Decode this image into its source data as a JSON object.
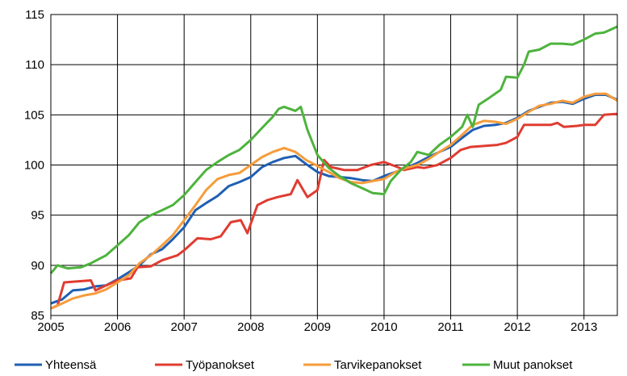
{
  "chart_data": {
    "type": "line",
    "title": "",
    "xlabel": "",
    "ylabel": "",
    "xlim": [
      2005,
      2013.5
    ],
    "ylim": [
      85,
      115
    ],
    "yticks": [
      85,
      90,
      95,
      100,
      105,
      110,
      115
    ],
    "xticks": [
      "2005",
      "2006",
      "2007",
      "2008",
      "2009",
      "2010",
      "2011",
      "2012",
      "2013"
    ],
    "grid": true,
    "legend_position": "bottom",
    "series": [
      {
        "name": "Yhteensä",
        "color": "#1f5fb3",
        "points": [
          [
            2005.0,
            86.2
          ],
          [
            2005.17,
            86.6
          ],
          [
            2005.33,
            87.5
          ],
          [
            2005.5,
            87.6
          ],
          [
            2005.67,
            87.9
          ],
          [
            2005.83,
            88.0
          ],
          [
            2006.0,
            88.6
          ],
          [
            2006.17,
            89.3
          ],
          [
            2006.33,
            90.0
          ],
          [
            2006.5,
            91.1
          ],
          [
            2006.67,
            91.6
          ],
          [
            2006.83,
            92.6
          ],
          [
            2007.0,
            93.8
          ],
          [
            2007.17,
            95.5
          ],
          [
            2007.33,
            96.2
          ],
          [
            2007.5,
            96.9
          ],
          [
            2007.67,
            97.9
          ],
          [
            2007.83,
            98.3
          ],
          [
            2008.0,
            98.8
          ],
          [
            2008.17,
            99.8
          ],
          [
            2008.33,
            100.3
          ],
          [
            2008.5,
            100.7
          ],
          [
            2008.67,
            100.9
          ],
          [
            2008.83,
            100.1
          ],
          [
            2009.0,
            99.3
          ],
          [
            2009.17,
            98.9
          ],
          [
            2009.33,
            98.8
          ],
          [
            2009.5,
            98.7
          ],
          [
            2009.67,
            98.5
          ],
          [
            2009.83,
            98.4
          ],
          [
            2010.0,
            98.9
          ],
          [
            2010.17,
            99.3
          ],
          [
            2010.33,
            99.7
          ],
          [
            2010.5,
            100.2
          ],
          [
            2010.67,
            100.8
          ],
          [
            2010.83,
            101.3
          ],
          [
            2011.0,
            101.8
          ],
          [
            2011.17,
            102.7
          ],
          [
            2011.33,
            103.5
          ],
          [
            2011.5,
            103.9
          ],
          [
            2011.67,
            104.0
          ],
          [
            2011.83,
            104.2
          ],
          [
            2012.0,
            104.7
          ],
          [
            2012.17,
            105.4
          ],
          [
            2012.33,
            105.8
          ],
          [
            2012.5,
            106.2
          ],
          [
            2012.67,
            106.3
          ],
          [
            2012.83,
            106.1
          ],
          [
            2013.0,
            106.6
          ],
          [
            2013.17,
            107.0
          ],
          [
            2013.33,
            107.0
          ],
          [
            2013.5,
            106.5
          ]
        ]
      },
      {
        "name": "Työpanokset",
        "color": "#e03c31",
        "points": [
          [
            2005.0,
            85.7
          ],
          [
            2005.1,
            86.0
          ],
          [
            2005.2,
            88.3
          ],
          [
            2005.4,
            88.4
          ],
          [
            2005.6,
            88.5
          ],
          [
            2005.67,
            87.5
          ],
          [
            2005.83,
            88.0
          ],
          [
            2006.0,
            88.5
          ],
          [
            2006.2,
            88.7
          ],
          [
            2006.3,
            89.8
          ],
          [
            2006.5,
            89.9
          ],
          [
            2006.67,
            90.5
          ],
          [
            2006.9,
            91.0
          ],
          [
            2007.0,
            91.5
          ],
          [
            2007.2,
            92.7
          ],
          [
            2007.4,
            92.6
          ],
          [
            2007.55,
            92.9
          ],
          [
            2007.7,
            94.3
          ],
          [
            2007.85,
            94.5
          ],
          [
            2007.95,
            93.2
          ],
          [
            2008.1,
            96.0
          ],
          [
            2008.25,
            96.5
          ],
          [
            2008.4,
            96.8
          ],
          [
            2008.6,
            97.1
          ],
          [
            2008.7,
            98.5
          ],
          [
            2008.85,
            96.8
          ],
          [
            2009.0,
            97.5
          ],
          [
            2009.1,
            100.5
          ],
          [
            2009.2,
            99.8
          ],
          [
            2009.4,
            99.5
          ],
          [
            2009.6,
            99.5
          ],
          [
            2009.8,
            100.0
          ],
          [
            2010.0,
            100.3
          ],
          [
            2010.2,
            99.8
          ],
          [
            2010.3,
            99.5
          ],
          [
            2010.5,
            99.8
          ],
          [
            2010.6,
            99.7
          ],
          [
            2010.8,
            100.0
          ],
          [
            2011.0,
            100.7
          ],
          [
            2011.15,
            101.5
          ],
          [
            2011.3,
            101.8
          ],
          [
            2011.5,
            101.9
          ],
          [
            2011.7,
            102.0
          ],
          [
            2011.83,
            102.2
          ],
          [
            2012.0,
            102.8
          ],
          [
            2012.1,
            104.0
          ],
          [
            2012.3,
            104.0
          ],
          [
            2012.5,
            104.0
          ],
          [
            2012.6,
            104.2
          ],
          [
            2012.7,
            103.8
          ],
          [
            2012.9,
            103.9
          ],
          [
            2013.0,
            104.0
          ],
          [
            2013.17,
            104.0
          ],
          [
            2013.3,
            105.0
          ],
          [
            2013.5,
            105.1
          ]
        ]
      },
      {
        "name": "Tarvikepanokset",
        "color": "#f59c3c",
        "points": [
          [
            2005.0,
            85.7
          ],
          [
            2005.17,
            86.2
          ],
          [
            2005.33,
            86.7
          ],
          [
            2005.5,
            87.0
          ],
          [
            2005.67,
            87.2
          ],
          [
            2005.83,
            87.6
          ],
          [
            2006.0,
            88.3
          ],
          [
            2006.17,
            89.0
          ],
          [
            2006.33,
            90.2
          ],
          [
            2006.5,
            91.0
          ],
          [
            2006.67,
            92.0
          ],
          [
            2006.83,
            93.0
          ],
          [
            2007.0,
            94.5
          ],
          [
            2007.17,
            96.0
          ],
          [
            2007.33,
            97.5
          ],
          [
            2007.5,
            98.6
          ],
          [
            2007.67,
            99.0
          ],
          [
            2007.83,
            99.2
          ],
          [
            2008.0,
            100.0
          ],
          [
            2008.17,
            100.8
          ],
          [
            2008.33,
            101.3
          ],
          [
            2008.5,
            101.7
          ],
          [
            2008.67,
            101.3
          ],
          [
            2008.83,
            100.5
          ],
          [
            2009.0,
            99.9
          ],
          [
            2009.17,
            99.3
          ],
          [
            2009.33,
            98.7
          ],
          [
            2009.5,
            98.3
          ],
          [
            2009.67,
            98.2
          ],
          [
            2009.83,
            98.4
          ],
          [
            2010.0,
            98.6
          ],
          [
            2010.17,
            99.3
          ],
          [
            2010.33,
            99.7
          ],
          [
            2010.5,
            100.0
          ],
          [
            2010.67,
            100.6
          ],
          [
            2010.83,
            101.3
          ],
          [
            2011.0,
            102.0
          ],
          [
            2011.17,
            103.0
          ],
          [
            2011.33,
            104.0
          ],
          [
            2011.5,
            104.4
          ],
          [
            2011.67,
            104.3
          ],
          [
            2011.83,
            104.1
          ],
          [
            2012.0,
            104.6
          ],
          [
            2012.17,
            105.3
          ],
          [
            2012.33,
            105.9
          ],
          [
            2012.5,
            106.1
          ],
          [
            2012.67,
            106.4
          ],
          [
            2012.83,
            106.2
          ],
          [
            2013.0,
            106.8
          ],
          [
            2013.17,
            107.1
          ],
          [
            2013.33,
            107.1
          ],
          [
            2013.5,
            106.4
          ]
        ]
      },
      {
        "name": "Muut panokset",
        "color": "#4db33d",
        "points": [
          [
            2005.0,
            89.2
          ],
          [
            2005.1,
            90.0
          ],
          [
            2005.25,
            89.7
          ],
          [
            2005.45,
            89.8
          ],
          [
            2005.6,
            90.2
          ],
          [
            2005.83,
            91.0
          ],
          [
            2006.0,
            92.0
          ],
          [
            2006.17,
            93.0
          ],
          [
            2006.33,
            94.3
          ],
          [
            2006.5,
            95.0
          ],
          [
            2006.67,
            95.5
          ],
          [
            2006.83,
            96.0
          ],
          [
            2007.0,
            97.0
          ],
          [
            2007.17,
            98.3
          ],
          [
            2007.33,
            99.5
          ],
          [
            2007.5,
            100.3
          ],
          [
            2007.67,
            101.0
          ],
          [
            2007.83,
            101.5
          ],
          [
            2008.0,
            102.5
          ],
          [
            2008.17,
            103.7
          ],
          [
            2008.33,
            104.8
          ],
          [
            2008.42,
            105.6
          ],
          [
            2008.5,
            105.8
          ],
          [
            2008.67,
            105.4
          ],
          [
            2008.75,
            105.8
          ],
          [
            2008.85,
            103.5
          ],
          [
            2009.0,
            101.0
          ],
          [
            2009.17,
            99.7
          ],
          [
            2009.33,
            98.9
          ],
          [
            2009.5,
            98.2
          ],
          [
            2009.67,
            97.7
          ],
          [
            2009.83,
            97.2
          ],
          [
            2010.0,
            97.1
          ],
          [
            2010.1,
            98.4
          ],
          [
            2010.25,
            99.5
          ],
          [
            2010.4,
            100.3
          ],
          [
            2010.5,
            101.3
          ],
          [
            2010.67,
            101.0
          ],
          [
            2010.83,
            102.0
          ],
          [
            2011.0,
            102.8
          ],
          [
            2011.17,
            103.8
          ],
          [
            2011.25,
            105.0
          ],
          [
            2011.33,
            103.8
          ],
          [
            2011.42,
            106.0
          ],
          [
            2011.58,
            106.7
          ],
          [
            2011.75,
            107.5
          ],
          [
            2011.83,
            108.8
          ],
          [
            2012.0,
            108.7
          ],
          [
            2012.1,
            110.0
          ],
          [
            2012.17,
            111.3
          ],
          [
            2012.33,
            111.5
          ],
          [
            2012.5,
            112.1
          ],
          [
            2012.67,
            112.1
          ],
          [
            2012.83,
            112.0
          ],
          [
            2013.0,
            112.5
          ],
          [
            2013.17,
            113.1
          ],
          [
            2013.3,
            113.2
          ],
          [
            2013.4,
            113.5
          ],
          [
            2013.5,
            113.8
          ]
        ]
      }
    ]
  }
}
